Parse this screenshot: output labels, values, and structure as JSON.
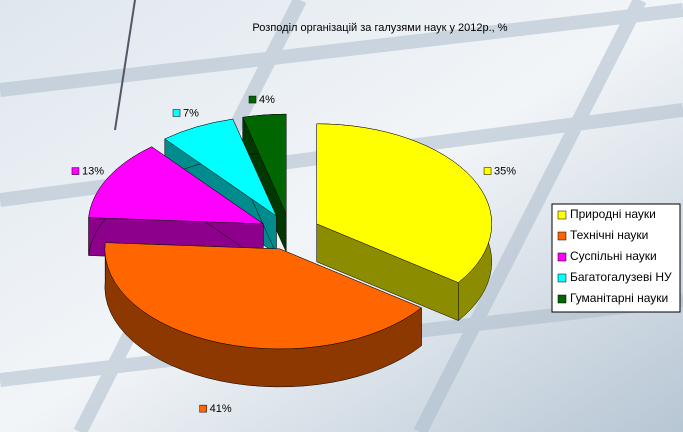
{
  "chart_data": {
    "type": "pie",
    "title": "Розподіл організацій за галузями наук у 2012р., %",
    "categories": [
      "Природні науки",
      "Технічні науки",
      "Суспільні науки",
      "Багатогалузеві НУ",
      "Гуманітарні науки"
    ],
    "values": [
      35,
      41,
      13,
      7,
      4
    ],
    "value_labels": [
      "35%",
      "41%",
      "13%",
      "7%",
      "4%"
    ],
    "colors": [
      "#ffff00",
      "#ff6600",
      "#ff00ff",
      "#00ffff",
      "#006600"
    ],
    "legend": "right"
  }
}
